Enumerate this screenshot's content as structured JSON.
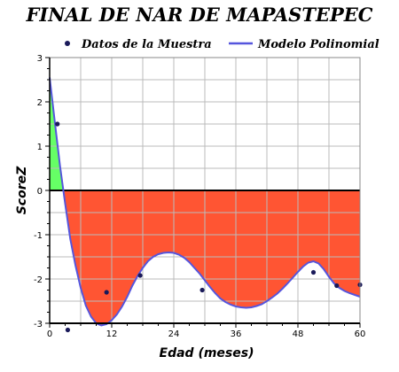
{
  "chart_data": {
    "type": "line",
    "title": "FINAL DE NAR DE MAPASTEPEC",
    "xlabel": "Edad (meses)",
    "ylabel": "ScoreZ",
    "xlim": [
      0,
      60
    ],
    "ylim": [
      -3,
      3
    ],
    "x_ticks": [
      "0",
      "12",
      "24",
      "36",
      "48",
      "60"
    ],
    "y_ticks": [
      "3",
      "2",
      "1",
      "0",
      "-1",
      "-2",
      "-3"
    ],
    "grid": true,
    "legend_position": "top",
    "series": [
      {
        "name": "Datos de la Muestra",
        "kind": "scatter",
        "color": "#1a1a5a",
        "x": [
          1.5,
          3.5,
          11,
          17.5,
          29.5,
          51,
          55.5,
          60
        ],
        "y": [
          1.5,
          -3.15,
          -2.3,
          -1.92,
          -2.25,
          -1.85,
          -2.15,
          -2.13
        ]
      },
      {
        "name": "Modelo Polinomial",
        "kind": "line",
        "color": "#5555dd",
        "x": [
          0,
          1,
          2,
          3,
          4,
          5,
          6,
          7,
          8,
          9,
          10,
          11,
          12,
          13,
          14,
          15,
          16,
          17,
          18,
          19,
          20,
          21,
          22,
          23,
          24,
          25,
          26,
          27,
          28,
          29,
          30,
          31,
          32,
          33,
          34,
          35,
          36,
          37,
          38,
          39,
          40,
          41,
          42,
          43,
          44,
          45,
          46,
          47,
          48,
          49,
          50,
          51,
          52,
          53,
          54,
          55,
          56,
          57,
          58,
          59,
          60
        ],
        "y": [
          2.55,
          1.55,
          0.55,
          -0.3,
          -1.1,
          -1.7,
          -2.2,
          -2.6,
          -2.85,
          -3.0,
          -3.05,
          -3.02,
          -2.93,
          -2.8,
          -2.62,
          -2.4,
          -2.15,
          -1.93,
          -1.75,
          -1.6,
          -1.5,
          -1.44,
          -1.41,
          -1.4,
          -1.41,
          -1.45,
          -1.52,
          -1.62,
          -1.75,
          -1.88,
          -2.03,
          -2.18,
          -2.32,
          -2.44,
          -2.52,
          -2.58,
          -2.62,
          -2.64,
          -2.65,
          -2.64,
          -2.61,
          -2.57,
          -2.5,
          -2.42,
          -2.33,
          -2.22,
          -2.1,
          -1.97,
          -1.84,
          -1.72,
          -1.63,
          -1.6,
          -1.65,
          -1.78,
          -1.95,
          -2.1,
          -2.2,
          -2.27,
          -2.32,
          -2.36,
          -2.4
        ]
      }
    ],
    "fill_above_color": "#66ff66",
    "fill_below_color": "#ff5533"
  }
}
